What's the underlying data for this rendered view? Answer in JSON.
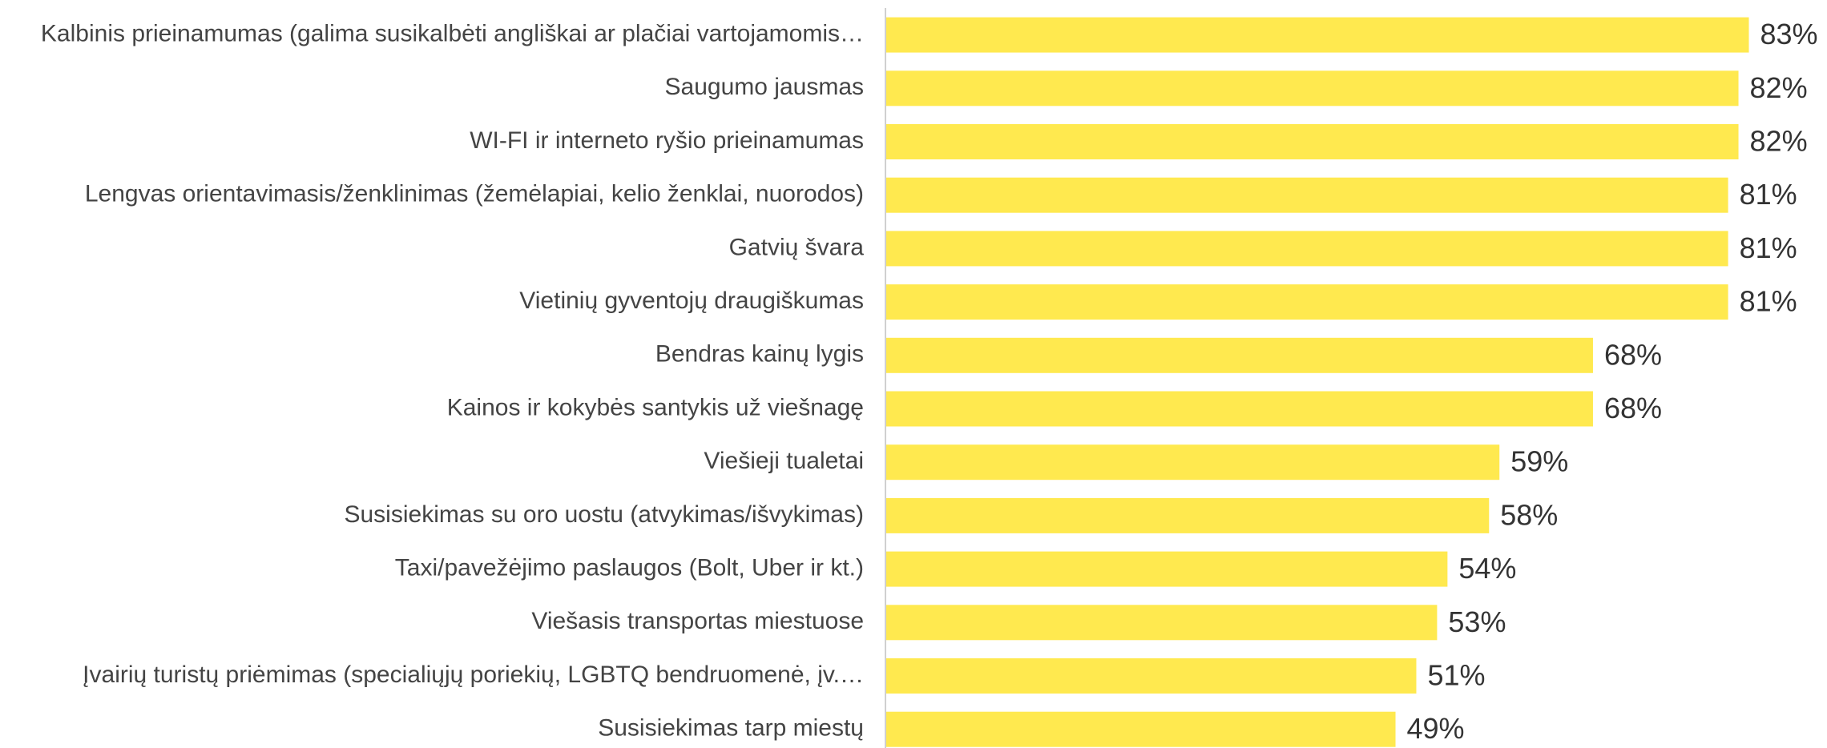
{
  "chart_data": {
    "type": "hbar",
    "categories": [
      "Kalbinis prieinamumas (galima susikalbėti angliškai ar plačiai vartojamomis…",
      "Saugumo jausmas",
      "WI-FI ir interneto ryšio prieinamumas",
      "Lengvas orientavimasis/ženklinimas (žemėlapiai, kelio ženklai, nuorodos)",
      "Gatvių švara",
      "Vietinių gyventojų draugiškumas",
      "Bendras kainų lygis",
      "Kainos ir kokybės santykis už viešnagę",
      "Viešieji tualetai",
      "Susisiekimas su oro uostu (atvykimas/išvykimas)",
      "Taxi/pavežėjimo paslaugos (Bolt, Uber ir kt.)",
      "Viešasis transportas miestuose",
      "Įvairių turistų priėmimas (specialiųjų poriekių, LGBTQ bendruomenė, įv.…",
      "Susisiekimas tarp miestų"
    ],
    "values": [
      83,
      82,
      82,
      81,
      81,
      81,
      68,
      68,
      59,
      58,
      54,
      53,
      51,
      49
    ],
    "value_labels": [
      "83%",
      "82%",
      "82%",
      "81%",
      "81%",
      "81%",
      "68%",
      "68%",
      "59%",
      "58%",
      "54%",
      "53%",
      "51%",
      "49%"
    ],
    "color": "#ffe94f"
  }
}
